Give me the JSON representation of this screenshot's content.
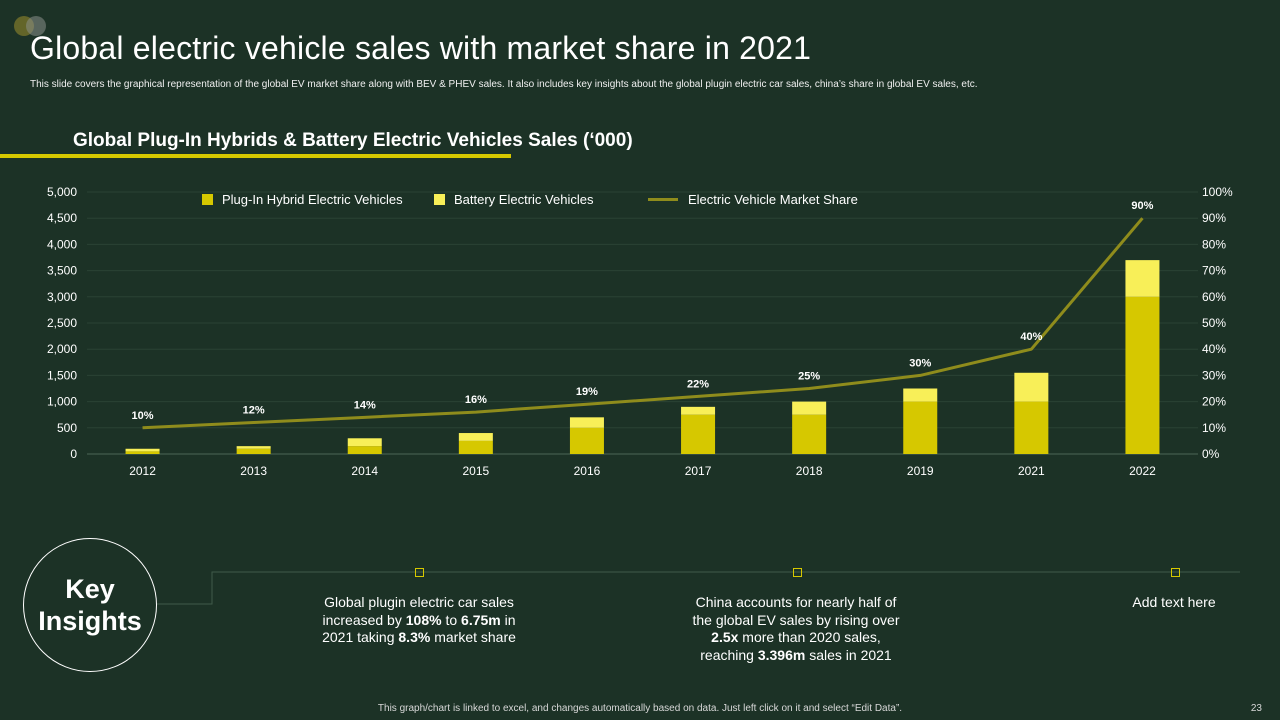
{
  "slide": {
    "title": "Global electric vehicle sales with market share in 2021",
    "subtitle": "This slide covers the graphical representation of the global EV market share along with BEV & PHEV sales. It also includes key insights about the global plugin electric car sales, china’s share in global EV sales, etc.",
    "page_number": "23",
    "footer": "This graph/chart is linked to excel, and changes automatically based on data. Just left click on it and select “Edit Data”."
  },
  "colors": {
    "background": "#1c3226",
    "phev": "#d6c800",
    "bev": "#f8ef58",
    "line": "#8f8c1c",
    "accent": "#d6c800"
  },
  "chart_data": {
    "type": "bar",
    "title": "Global Plug-In Hybrids & Battery Electric Vehicles Sales (‘000)",
    "categories": [
      "2012",
      "2013",
      "2014",
      "2015",
      "2016",
      "2017",
      "2018",
      "2019",
      "2021",
      "2022"
    ],
    "series": [
      {
        "name": "Plug-In Hybrid Electric Vehicles",
        "kind": "bar",
        "stacked": true,
        "values": [
          50,
          100,
          150,
          250,
          500,
          750,
          750,
          1000,
          1000,
          3000
        ]
      },
      {
        "name": "Battery Electric Vehicles",
        "kind": "bar",
        "stacked": true,
        "values": [
          50,
          50,
          150,
          150,
          200,
          150,
          250,
          250,
          550,
          700
        ]
      },
      {
        "name": "Electric Vehicle Market  Share",
        "kind": "line",
        "axis": "right",
        "values": [
          10,
          12,
          14,
          16,
          19,
          22,
          25,
          30,
          40,
          90
        ]
      }
    ],
    "data_labels": [
      "10%",
      "12%",
      "14%",
      "16%",
      "19%",
      "22%",
      "25%",
      "30%",
      "40%",
      "90%"
    ],
    "y_left": {
      "min": 0,
      "max": 5000,
      "ticks": [
        "0",
        "500",
        "1,000",
        "1,500",
        "2,000",
        "2,500",
        "3,000",
        "3,500",
        "4,000",
        "4,500",
        "5,000"
      ]
    },
    "y_right": {
      "min": 0,
      "max": 100,
      "ticks": [
        "0%",
        "10%",
        "20%",
        "30%",
        "40%",
        "50%",
        "60%",
        "70%",
        "80%",
        "90%",
        "100%"
      ]
    },
    "legend_position": "top",
    "grid": true
  },
  "legend": {
    "phev": "Plug-In Hybrid Electric Vehicles",
    "bev": "Battery Electric Vehicles",
    "line": "Electric Vehicle Market  Share"
  },
  "insights": {
    "heading_line1": "Key",
    "heading_line2": "Insights",
    "i1": {
      "t1": "Global plugin electric car sales increased by ",
      "b1": "108%",
      "t2": " to ",
      "b2": "6.75m",
      "t3": " in 2021 taking ",
      "b3": "8.3%",
      "t4": " market share"
    },
    "i2": {
      "t1": "China accounts for nearly half of the global  EV sales by rising over ",
      "b1": "2.5x",
      "t2": " more than 2020 sales, reaching ",
      "b2": "3.396m",
      "t3": "  sales in 2021"
    },
    "i3": {
      "t1": "Add text here"
    }
  }
}
